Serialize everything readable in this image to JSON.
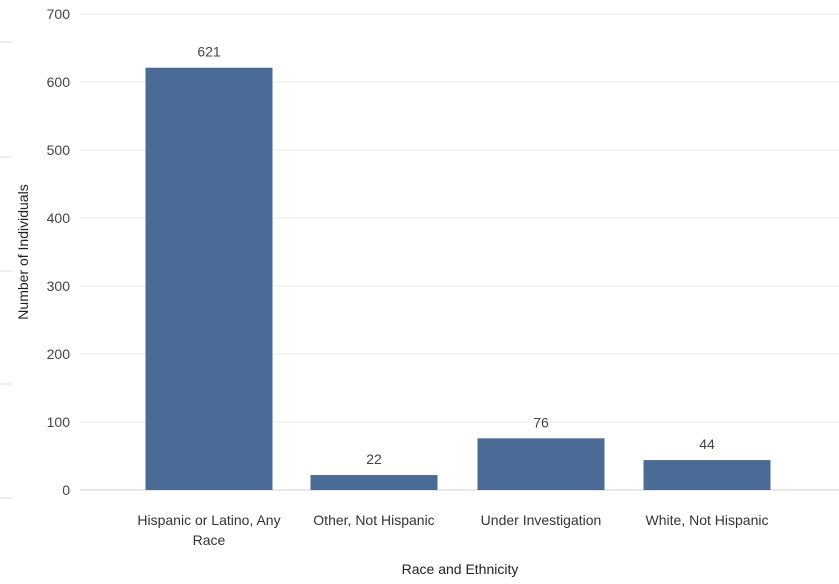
{
  "chart_data": {
    "type": "bar",
    "title": "",
    "xlabel": "Race and Ethnicity",
    "ylabel": "Number of Individuals",
    "categories": [
      [
        "Hispanic or Latino, Any",
        "Race"
      ],
      [
        "Other, Not Hispanic"
      ],
      [
        "Under Investigation"
      ],
      [
        "White, Not Hispanic"
      ]
    ],
    "values": [
      621,
      22,
      76,
      44
    ],
    "data_labels": [
      "621",
      "22",
      "76",
      "44"
    ],
    "ylim": [
      0,
      700
    ],
    "yticks": [
      0,
      100,
      200,
      300,
      400,
      500,
      600,
      700
    ],
    "grid": true,
    "legend": "none",
    "colors": {
      "bar": "#4a6b96"
    }
  }
}
